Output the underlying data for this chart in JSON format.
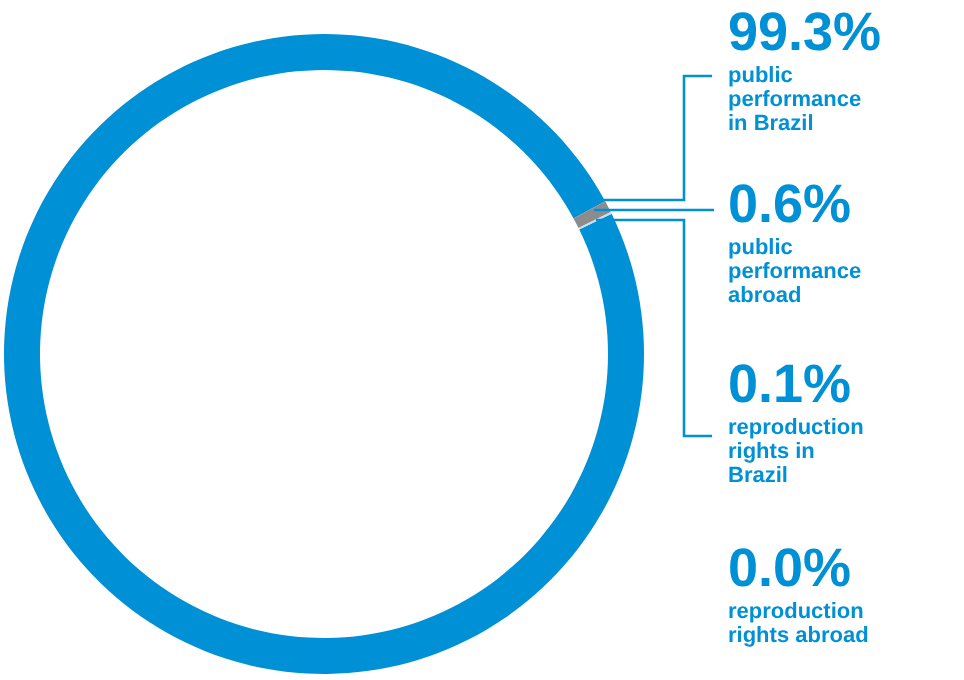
{
  "chart_data": {
    "type": "donut",
    "categories": [
      "public performance in Brazil",
      "public performance abroad",
      "reproduction rights in Brazil",
      "reproduction rights abroad"
    ],
    "values": [
      99.3,
      0.6,
      0.1,
      0.0
    ],
    "value_labels": [
      "99.3%",
      "0.6%",
      "0.1%",
      "0.0%"
    ],
    "colors": [
      "#0090d6",
      "#8c8c8c",
      "#c9dde8",
      "#0090d6"
    ],
    "legend": false
  }
}
